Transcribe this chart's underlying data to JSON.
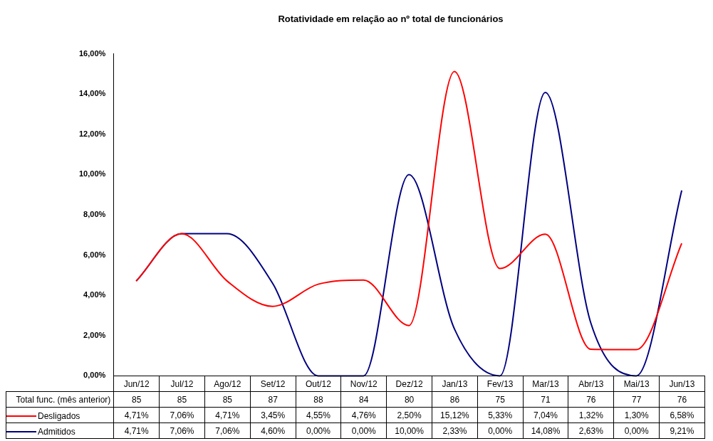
{
  "chart_data": {
    "type": "line",
    "title": "Rotatividade em relação ao nº total de funcionários",
    "categories": [
      "Jun/12",
      "Jul/12",
      "Ago/12",
      "Set/12",
      "Out/12",
      "Nov/12",
      "Dez/12",
      "Jan/13",
      "Fev/13",
      "Mar/13",
      "Abr/13",
      "Mai/13",
      "Jun/13"
    ],
    "series": [
      {
        "name": "Desligados",
        "color": "#ff0000",
        "values": [
          4.71,
          7.06,
          4.71,
          3.45,
          4.55,
          4.76,
          2.5,
          15.12,
          5.33,
          7.04,
          1.32,
          1.3,
          6.58
        ],
        "value_labels": [
          "4,71%",
          "7,06%",
          "4,71%",
          "3,45%",
          "4,55%",
          "4,76%",
          "2,50%",
          "15,12%",
          "5,33%",
          "7,04%",
          "1,32%",
          "1,30%",
          "6,58%"
        ]
      },
      {
        "name": "Admitidos",
        "color": "#000080",
        "values": [
          4.71,
          7.06,
          7.06,
          4.6,
          0,
          0,
          10,
          2.33,
          0,
          14.08,
          2.63,
          0,
          9.21
        ],
        "value_labels": [
          "4,71%",
          "7,06%",
          "7,06%",
          "4,60%",
          "0,00%",
          "0,00%",
          "10,00%",
          "2,33%",
          "0,00%",
          "14,08%",
          "2,63%",
          "0,00%",
          "9,21%"
        ]
      }
    ],
    "annotations": [
      "Total func. (mês anterior)",
      "85",
      "85",
      "85",
      "87",
      "88",
      "84",
      "80",
      "86",
      "75",
      "71",
      "76",
      "77",
      "76"
    ],
    "ylim": [
      0,
      16
    ],
    "yticks": [
      {
        "value": 0,
        "label": "0,00%"
      },
      {
        "value": 2,
        "label": "2,00%"
      },
      {
        "value": 4,
        "label": "4,00%"
      },
      {
        "value": 6,
        "label": "6,00%"
      },
      {
        "value": 8,
        "label": "8,00%"
      },
      {
        "value": 10,
        "label": "10,00%"
      },
      {
        "value": 12,
        "label": "12,00%"
      },
      {
        "value": 14,
        "label": "14,00%"
      },
      {
        "value": 16,
        "label": "16,00%"
      }
    ],
    "grid": false,
    "legend": "bottom",
    "marker": "none",
    "line_style": "solid"
  }
}
